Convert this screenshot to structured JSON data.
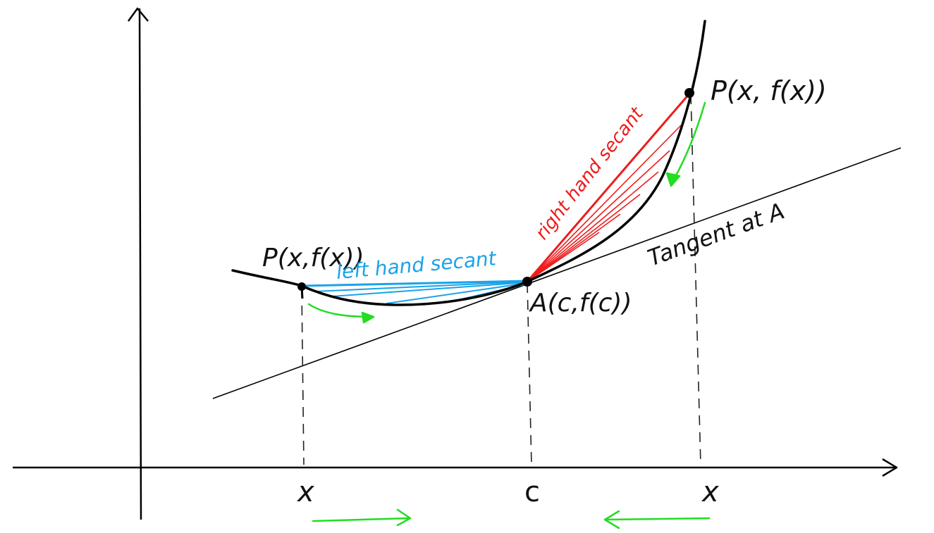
{
  "diagram": {
    "labels": {
      "point_left": "P(x,f(x))",
      "point_right": "P(x, f(x))",
      "point_a": "A(c,f(c))",
      "left_secant": "left hand secant",
      "right_secant": "right hand secant",
      "tangent": "Tangent at A",
      "tick_left_x": "x",
      "tick_c": "c",
      "tick_right_x": "x"
    },
    "colors": {
      "curve": "#000000",
      "axes": "#000000",
      "tangent": "#000000",
      "left_secants": "#1aa3e8",
      "right_secants": "#ee1c1c",
      "arrows": "#22dd22",
      "dashed": "#222222"
    }
  }
}
